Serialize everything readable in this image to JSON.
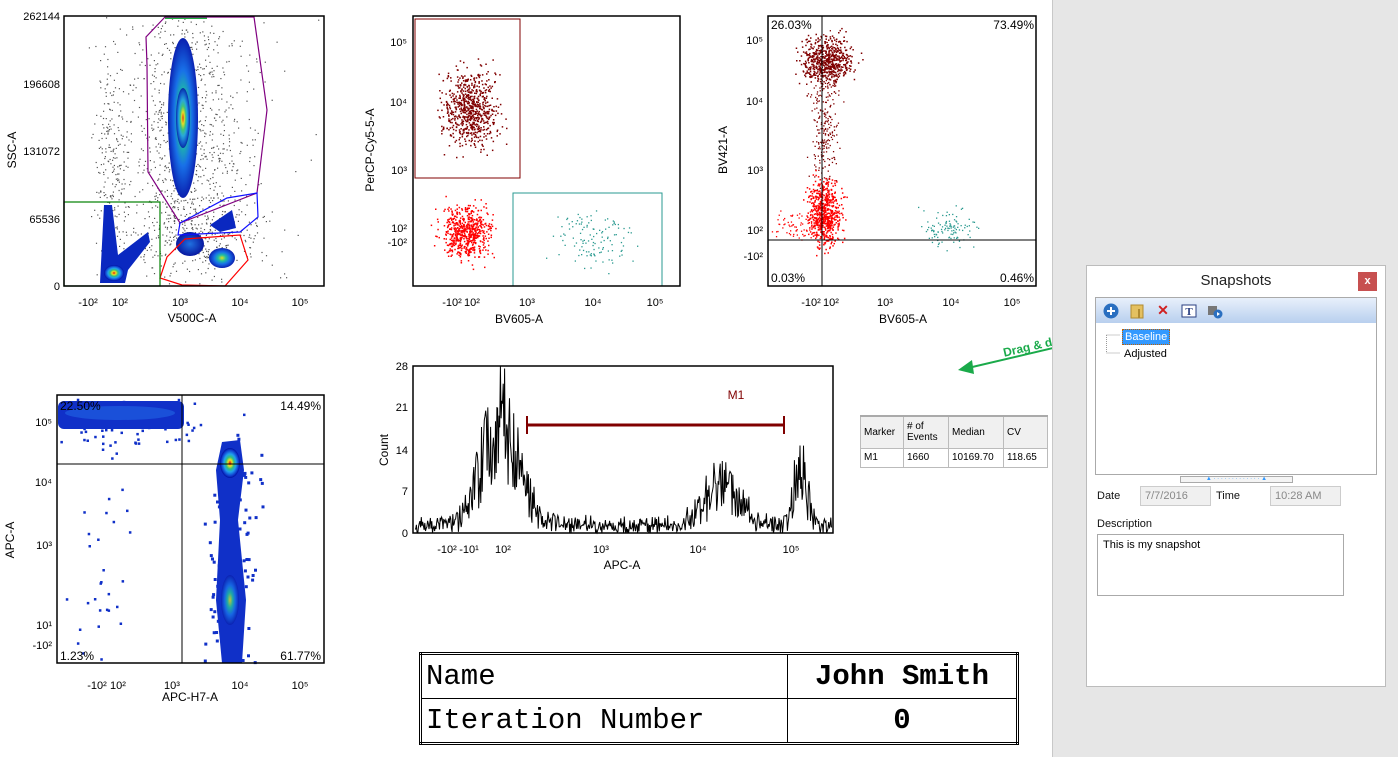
{
  "plot1": {
    "ylabel": "SSC-A",
    "xlabel": "V500C-A",
    "yticks": [
      "262144",
      "196608",
      "131072",
      "65536",
      "0"
    ],
    "xticks": [
      "-10²",
      "10²",
      "10³",
      "10⁴",
      "10⁵"
    ]
  },
  "plot2": {
    "ylabel": "PerCP-Cy5-5-A",
    "xlabel": "BV605-A",
    "yticks": [
      "10⁵",
      "10⁴",
      "10³",
      "10²",
      "-10²"
    ],
    "xticks": [
      "-10²",
      "10²",
      "10³",
      "10⁴",
      "10⁵"
    ]
  },
  "plot3": {
    "ylabel": "BV421-A",
    "xlabel": "BV605-A",
    "yticks": [
      "10⁵",
      "10⁴",
      "10³",
      "10²",
      "-10²"
    ],
    "xticks": [
      "-10²",
      "10²",
      "10³",
      "10⁴",
      "10⁵"
    ],
    "quadrants": {
      "ul": "26.03%",
      "ur": "73.49%",
      "ll": "0.03%",
      "lr": "0.46%"
    }
  },
  "plot4": {
    "ylabel": "APC-A",
    "xlabel": "APC-H7-A",
    "yticks": [
      "10⁵",
      "10⁴",
      "10³",
      "10¹",
      "-10²"
    ],
    "xticks": [
      "-10²",
      "10²",
      "10³",
      "10⁴",
      "10⁵"
    ],
    "quadrants": {
      "ul": "22.50%",
      "ur": "14.49%",
      "ll": "1.23%",
      "lr": "61.77%"
    }
  },
  "histogram": {
    "ylabel": "Count",
    "xlabel": "APC-A",
    "yticks": [
      "28",
      "21",
      "14",
      "7",
      "0"
    ],
    "xticks": [
      "-10²",
      "-10¹",
      "10²",
      "10³",
      "10⁴",
      "10⁵"
    ],
    "marker": "M1"
  },
  "stats": {
    "headers": [
      "Marker",
      "# of Events",
      "Median",
      "CV"
    ],
    "row": [
      "M1",
      "1660",
      "10169.70",
      "118.65"
    ]
  },
  "info_table": {
    "name_label": "Name",
    "name_value": "John Smith",
    "iter_label": "Iteration Number",
    "iter_value": "0"
  },
  "annotation": {
    "text": "Drag & drop",
    "color": "#1aaa4a"
  },
  "snapshots": {
    "title": "Snapshots",
    "close": "x",
    "toolbar": [
      "add-icon",
      "folder-icon",
      "delete-icon",
      "text-icon",
      "play-snapshot-icon"
    ],
    "items": [
      "Baseline",
      "Adjusted"
    ],
    "date_label": "Date",
    "date_value": "7/7/2016",
    "time_label": "Time",
    "time_value": "10:28 AM",
    "description_label": "Description",
    "description_value": "This is my snapshot"
  }
}
